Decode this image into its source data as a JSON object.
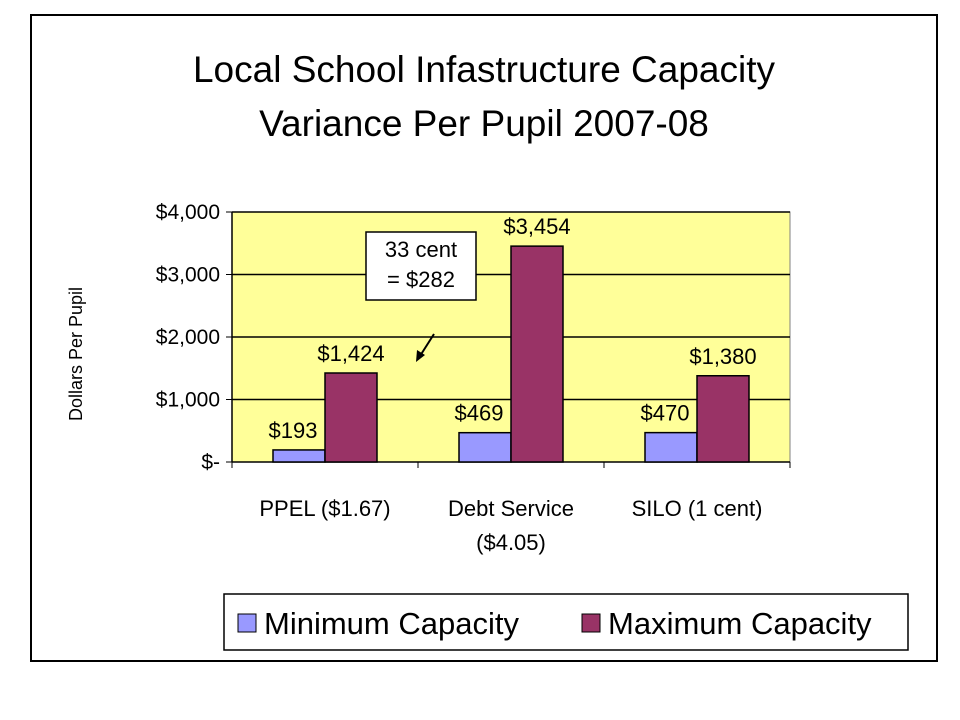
{
  "chart_data": {
    "type": "bar",
    "title": [
      "Local School Infastructure Capacity",
      "Variance Per Pupil 2007-08"
    ],
    "ylabel": "Dollars Per Pupil",
    "xlabel": "",
    "ylim": [
      0,
      4000
    ],
    "yticks": [
      0,
      1000,
      2000,
      3000,
      4000
    ],
    "ytick_labels": [
      "$-",
      "$1,000",
      "$2,000",
      "$3,000",
      "$4,000"
    ],
    "grid": true,
    "legend_position": "bottom",
    "plot_background": "#ffff99",
    "categories": [
      [
        "PPEL ($1.67)"
      ],
      [
        "Debt Service",
        "($4.05)"
      ],
      [
        "SILO (1 cent)"
      ]
    ],
    "series": [
      {
        "name": "Minimum Capacity",
        "color": "#9999ff",
        "values": [
          193,
          469,
          470
        ],
        "labels": [
          "$193",
          "$469",
          "$470"
        ]
      },
      {
        "name": "Maximum Capacity",
        "color": "#993366",
        "values": [
          1424,
          3454,
          1380
        ],
        "labels": [
          "$1,424",
          "$3,454",
          "$1,380"
        ]
      }
    ],
    "annotation": {
      "lines": [
        "33 cent",
        "= $282"
      ],
      "arrow": "points to Debt Service bars"
    }
  }
}
